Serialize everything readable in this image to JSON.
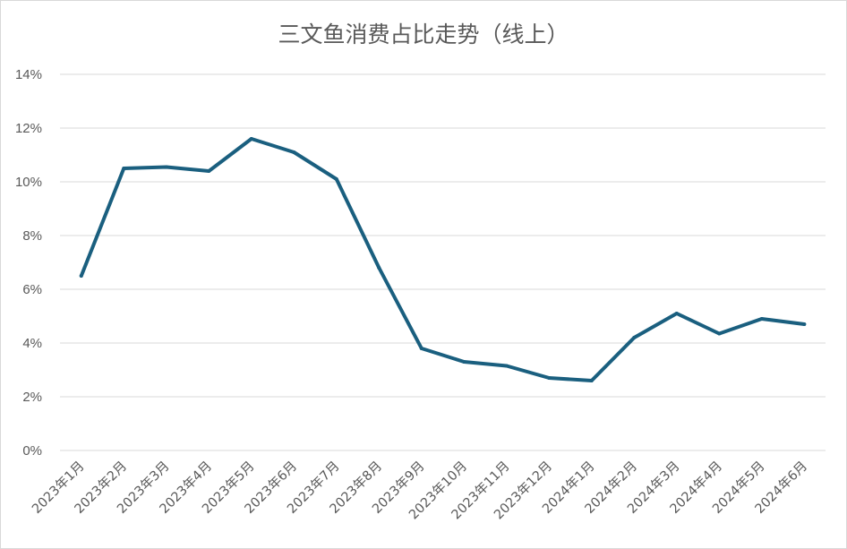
{
  "chart_data": {
    "type": "line",
    "title": "三文鱼消费占比走势（线上）",
    "xlabel": "",
    "ylabel": "",
    "ylim": [
      0,
      14
    ],
    "y_ticks": [
      0,
      2,
      4,
      6,
      8,
      10,
      12,
      14
    ],
    "y_tick_labels": [
      "0%",
      "2%",
      "4%",
      "6%",
      "8%",
      "10%",
      "12%",
      "14%"
    ],
    "grid": true,
    "legend": "none",
    "categories": [
      "2023年1月",
      "2023年2月",
      "2023年3月",
      "2023年4月",
      "2023年5月",
      "2023年6月",
      "2023年7月",
      "2023年8月",
      "2023年9月",
      "2023年10月",
      "2023年11月",
      "2023年12月",
      "2024年1月",
      "2024年2月",
      "2024年3月",
      "2024年4月",
      "2024年5月",
      "2024年6月"
    ],
    "series": [
      {
        "color": "#1a5f7f",
        "values": [
          6.5,
          10.5,
          10.55,
          10.4,
          11.6,
          11.1,
          10.1,
          6.8,
          3.8,
          3.3,
          3.15,
          2.7,
          2.6,
          4.2,
          5.1,
          4.35,
          4.9,
          4.7
        ]
      }
    ]
  }
}
